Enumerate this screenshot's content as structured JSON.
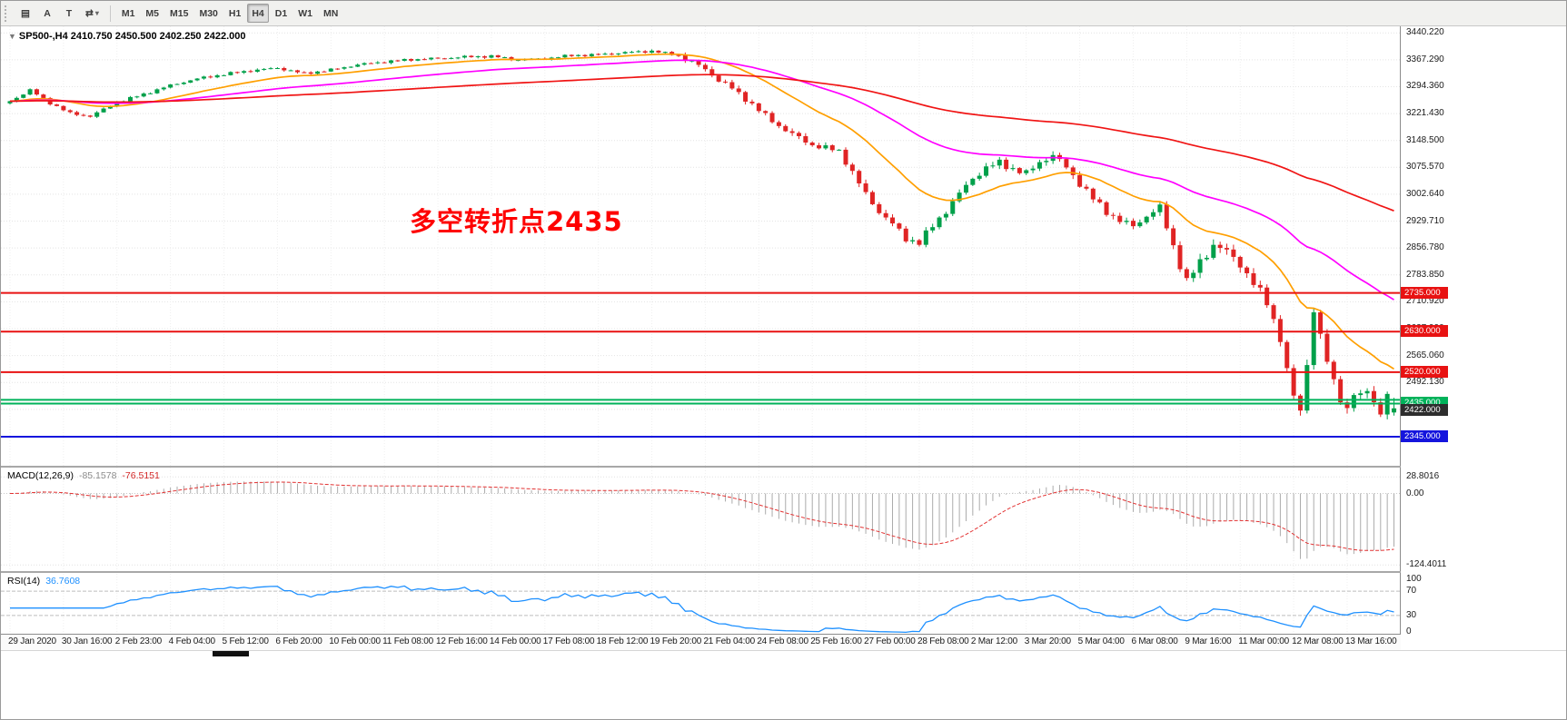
{
  "toolbar": {
    "left_buttons": [
      {
        "name": "chart-windows",
        "glyph": "▤"
      },
      {
        "name": "annotations",
        "glyph": "A"
      },
      {
        "name": "text-tool",
        "glyph": "T"
      },
      {
        "name": "cycle-symbols",
        "glyph": "⇄",
        "caret": "▾"
      }
    ],
    "timeframes": [
      "M1",
      "M5",
      "M15",
      "M30",
      "H1",
      "H4",
      "D1",
      "W1",
      "MN"
    ],
    "active_timeframe": "H4"
  },
  "chart": {
    "marker": "▼",
    "title": "SP500-,H4",
    "ohlc": "2410.750 2450.500 2402.250 2422.000",
    "annotation": {
      "text": "多空转折点2435",
      "color": "#fe0000"
    },
    "price_labels": [
      "3440.220",
      "3367.290",
      "3294.360",
      "3221.430",
      "3148.500",
      "3075.570",
      "3002.640",
      "2929.710",
      "2856.780",
      "2783.850",
      "2710.920",
      "2637.990",
      "2565.060",
      "2492.130",
      "2419.200",
      "2346.270"
    ],
    "hlines": [
      {
        "price": 2735,
        "label": "2735.000",
        "color": "#e81212",
        "width": 2
      },
      {
        "price": 2630,
        "label": "2630.000",
        "color": "#e81212",
        "width": 2
      },
      {
        "price": 2520,
        "label": "2520.000",
        "color": "#e81212",
        "width": 2
      },
      {
        "price": 2445,
        "label": null,
        "color": "#00b25a",
        "width": 2
      },
      {
        "price": 2435,
        "label": "2435.000",
        "color": "#00b25a",
        "width": 2
      },
      {
        "price": 2345,
        "label": "2345.000",
        "color": "#1515dd",
        "width": 2
      }
    ],
    "price_marker": {
      "price": 2422,
      "label": "2422.000",
      "bg": "#2d2d2d"
    }
  },
  "macd": {
    "label": "MACD(12,26,9)",
    "value_main": "-85.1578",
    "value_signal": "-76.5151",
    "scale_labels": [
      "28.8016",
      "0.00",
      "-124.4011"
    ]
  },
  "rsi": {
    "label": "RSI(14)",
    "value": "36.7608",
    "scale_labels": [
      "100",
      "70",
      "30",
      "0"
    ],
    "levels": [
      70,
      30
    ]
  },
  "time_axis": {
    "labels": [
      "29 Jan 2020",
      "30 Jan 16:00",
      "2 Feb 23:00",
      "4 Feb 04:00",
      "5 Feb 12:00",
      "6 Feb 20:00",
      "10 Feb 00:00",
      "11 Feb 08:00",
      "12 Feb 16:00",
      "14 Feb 00:00",
      "17 Feb 08:00",
      "18 Feb 12:00",
      "19 Feb 20:00",
      "21 Feb 04:00",
      "24 Feb 08:00",
      "25 Feb 16:00",
      "27 Feb 00:00",
      "28 Feb 08:00",
      "2 Mar 12:00",
      "3 Mar 20:00",
      "5 Mar 04:00",
      "6 Mar 08:00",
      "9 Mar 16:00",
      "11 Mar 00:00",
      "12 Mar 08:00",
      "13 Mar 16:00"
    ]
  },
  "chart_data": {
    "type": "candlestick",
    "symbol": "SP500-",
    "timeframe": "H4",
    "title": "SP500-,H4 2410.750 2450.500 2402.250 2422.000",
    "bars": 208,
    "price_top": 3458,
    "price_scale": 2.4624,
    "ylim": [
      2266,
      3458
    ],
    "last_ohlc": {
      "open": 2410.75,
      "high": 2450.5,
      "low": 2402.25,
      "close": 2422.0
    },
    "anchors": [
      [
        0,
        3255
      ],
      [
        3,
        3285
      ],
      [
        6,
        3250
      ],
      [
        9,
        3222
      ],
      [
        12,
        3214
      ],
      [
        16,
        3252
      ],
      [
        20,
        3274
      ],
      [
        24,
        3298
      ],
      [
        28,
        3316
      ],
      [
        32,
        3328
      ],
      [
        36,
        3338
      ],
      [
        40,
        3345
      ],
      [
        44,
        3330
      ],
      [
        48,
        3340
      ],
      [
        52,
        3354
      ],
      [
        56,
        3362
      ],
      [
        60,
        3368
      ],
      [
        64,
        3371
      ],
      [
        68,
        3375
      ],
      [
        72,
        3377
      ],
      [
        76,
        3367
      ],
      [
        80,
        3371
      ],
      [
        84,
        3379
      ],
      [
        88,
        3381
      ],
      [
        92,
        3387
      ],
      [
        96,
        3391
      ],
      [
        100,
        3379
      ],
      [
        104,
        3342
      ],
      [
        106,
        3312
      ],
      [
        108,
        3290
      ],
      [
        110,
        3262
      ],
      [
        112,
        3230
      ],
      [
        114,
        3202
      ],
      [
        116,
        3176
      ],
      [
        118,
        3156
      ],
      [
        120,
        3136
      ],
      [
        122,
        3128
      ],
      [
        124,
        3120
      ],
      [
        126,
        3062
      ],
      [
        128,
        3002
      ],
      [
        130,
        2956
      ],
      [
        132,
        2922
      ],
      [
        134,
        2882
      ],
      [
        136,
        2872
      ],
      [
        138,
        2916
      ],
      [
        140,
        2958
      ],
      [
        142,
        3004
      ],
      [
        144,
        3046
      ],
      [
        146,
        3074
      ],
      [
        148,
        3088
      ],
      [
        150,
        3072
      ],
      [
        152,
        3058
      ],
      [
        154,
        3090
      ],
      [
        156,
        3108
      ],
      [
        158,
        3076
      ],
      [
        160,
        3032
      ],
      [
        162,
        2990
      ],
      [
        164,
        2956
      ],
      [
        166,
        2930
      ],
      [
        168,
        2916
      ],
      [
        170,
        2944
      ],
      [
        172,
        2966
      ],
      [
        174,
        2862
      ],
      [
        176,
        2764
      ],
      [
        178,
        2818
      ],
      [
        180,
        2866
      ],
      [
        182,
        2846
      ],
      [
        184,
        2814
      ],
      [
        186,
        2760
      ],
      [
        188,
        2710
      ],
      [
        190,
        2614
      ],
      [
        191,
        2520
      ],
      [
        192,
        2456
      ],
      [
        193,
        2412
      ],
      [
        194,
        2548
      ],
      [
        195,
        2686
      ],
      [
        196,
        2618
      ],
      [
        197,
        2546
      ],
      [
        198,
        2496
      ],
      [
        199,
        2452
      ],
      [
        200,
        2418
      ],
      [
        201,
        2462
      ],
      [
        202,
        2448
      ],
      [
        203,
        2478
      ],
      [
        204,
        2438
      ],
      [
        205,
        2414
      ],
      [
        206,
        2452
      ],
      [
        207,
        2422
      ]
    ],
    "volatility": [
      [
        100,
        6
      ],
      [
        126,
        13
      ],
      [
        174,
        17
      ],
      [
        208,
        24
      ]
    ],
    "moving_averages": [
      {
        "period": 20,
        "color": "#ff9f00"
      },
      {
        "period": 55,
        "color": "#ff00ff"
      },
      {
        "period": 150,
        "color": "#f01414"
      }
    ],
    "up_color": "#00a04a",
    "down_color": "#e02424",
    "macd_range": {
      "vmax": 45,
      "vmin": -135
    },
    "indicators": {
      "macd": {
        "fast": 12,
        "slow": 26,
        "signal": 9,
        "last_main": -85.1578,
        "last_signal": -76.5151,
        "hist_color": "#ababab",
        "signal_color": "#e23232"
      },
      "rsi": {
        "period": 14,
        "last": 36.7608,
        "color": "#1e90ff",
        "levels": [
          70,
          30
        ]
      }
    }
  }
}
